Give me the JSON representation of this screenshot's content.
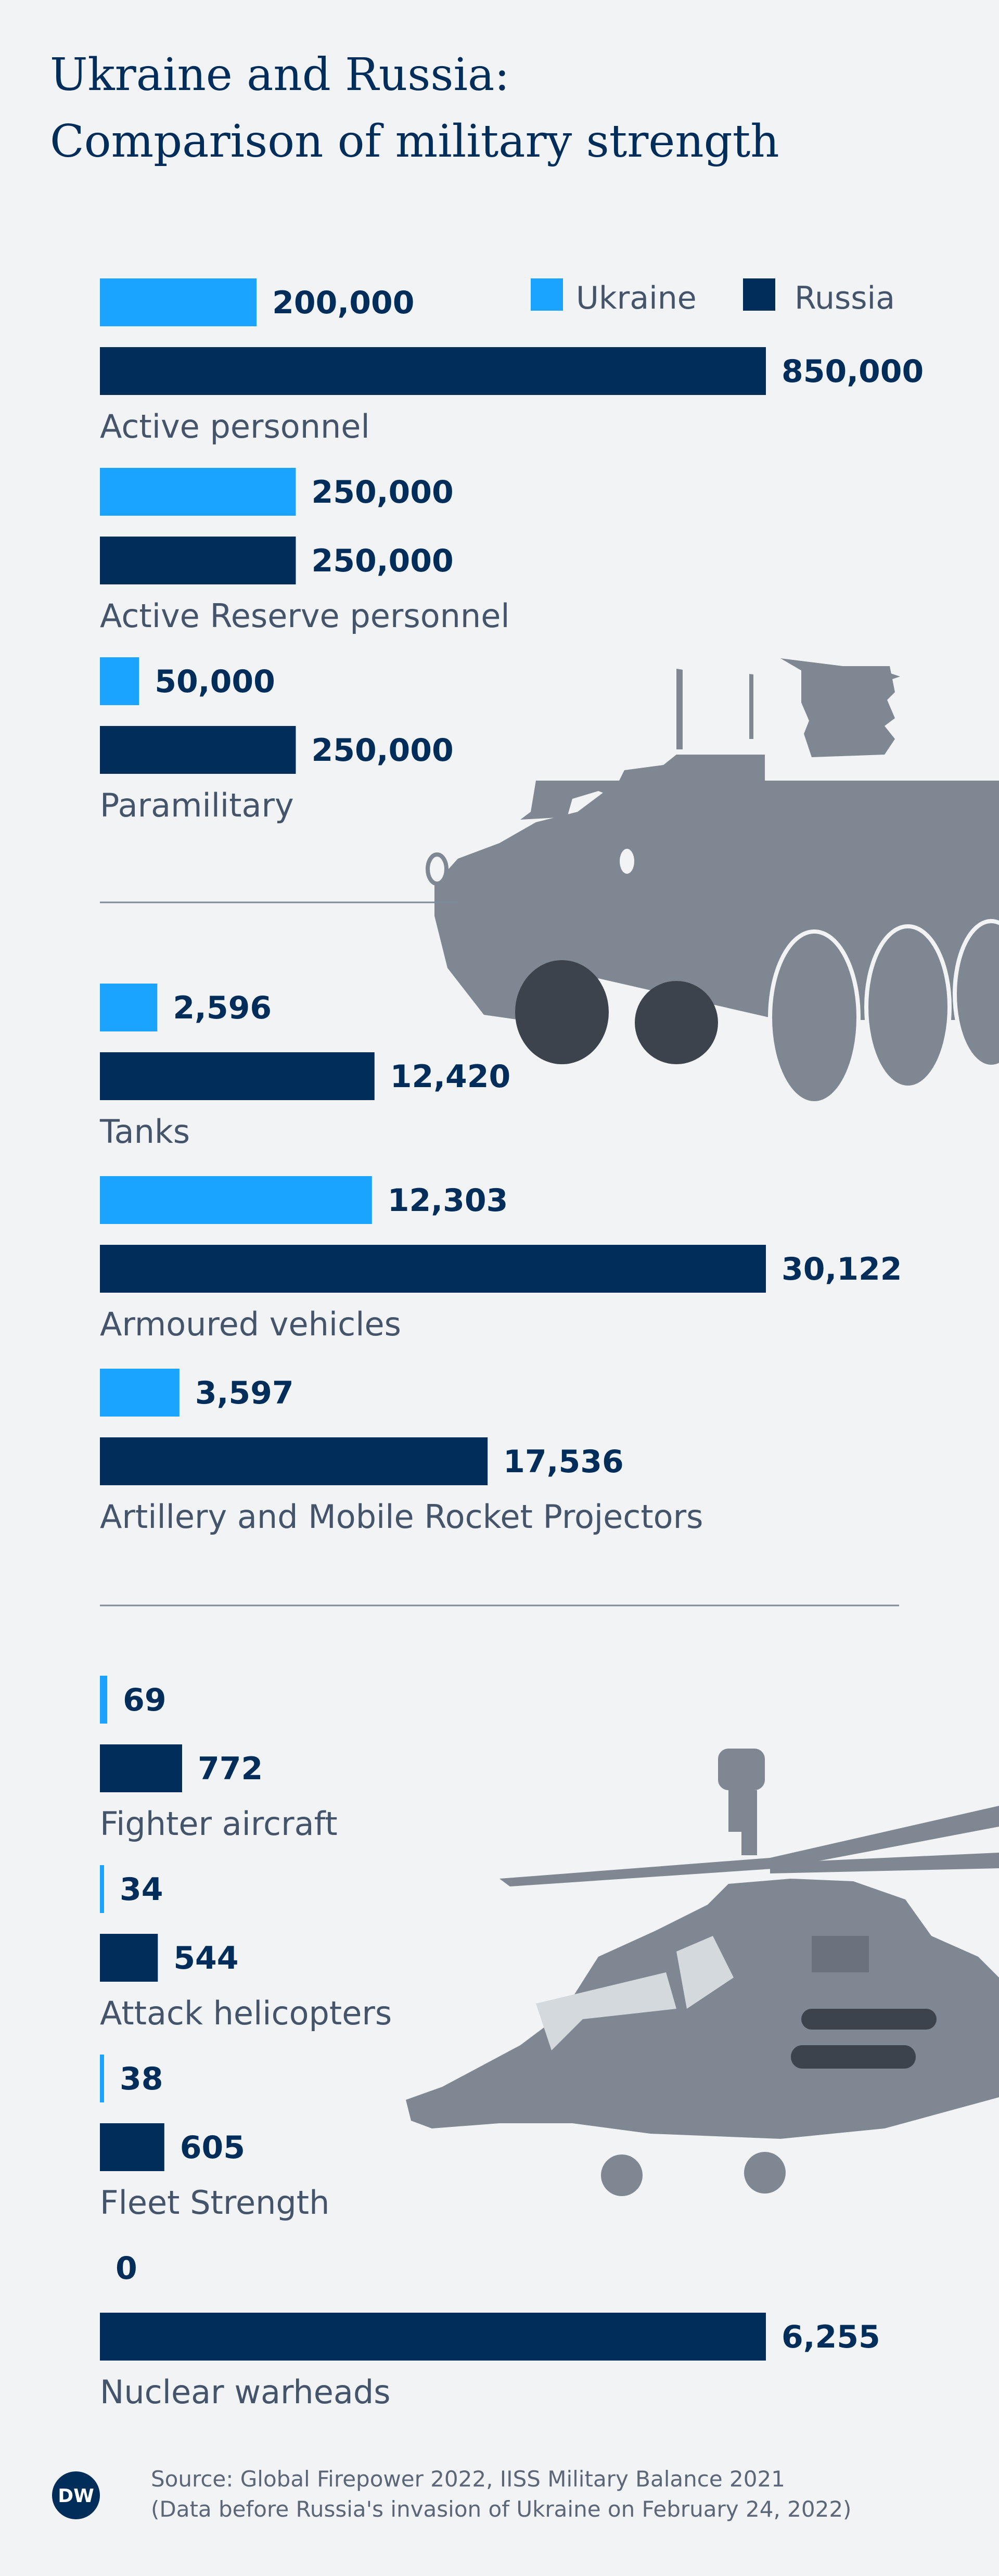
{
  "title_lines": [
    "Ukraine and Russia:",
    "Comparison of military strength"
  ],
  "colors": {
    "ukraine": "#1aa3ff",
    "russia": "#002d5a",
    "vehicle": "#7f8792",
    "vehicle_dark": "#3d434c"
  },
  "chart_data": {
    "type": "bar",
    "orientation": "horizontal",
    "title": "Ukraine and Russia: Comparison of military strength",
    "legend": {
      "position": "top-right",
      "entries": [
        "Ukraine",
        "Russia"
      ]
    },
    "groups": [
      {
        "name": "personnel",
        "max_value": 850000,
        "categories": [
          {
            "label": "Active personnel",
            "ukraine": 200000,
            "russia": 850000,
            "ukraine_text": "200,000",
            "russia_text": "850,000"
          },
          {
            "label": "Active Reserve personnel",
            "ukraine": 250000,
            "russia": 250000,
            "ukraine_text": "250,000",
            "russia_text": "250,000"
          },
          {
            "label": "Paramilitary",
            "ukraine": 50000,
            "russia": 250000,
            "ukraine_text": "50,000",
            "russia_text": "250,000"
          }
        ]
      },
      {
        "name": "land-equipment",
        "max_value": 30122,
        "categories": [
          {
            "label": "Tanks",
            "ukraine": 2596,
            "russia": 12420,
            "ukraine_text": "2,596",
            "russia_text": "12,420"
          },
          {
            "label": "Armoured vehicles",
            "ukraine": 12303,
            "russia": 30122,
            "ukraine_text": "12,303",
            "russia_text": "30,122"
          },
          {
            "label": "Artillery and Mobile Rocket Projectors",
            "ukraine": 3597,
            "russia": 17536,
            "ukraine_text": "3,597",
            "russia_text": "17,536"
          }
        ]
      },
      {
        "name": "air-sea-nuclear",
        "max_value": 6255,
        "categories": [
          {
            "label": "Fighter aircraft",
            "ukraine": 69,
            "russia": 772,
            "ukraine_text": "69",
            "russia_text": "772"
          },
          {
            "label": "Attack helicopters",
            "ukraine": 34,
            "russia": 544,
            "ukraine_text": "34",
            "russia_text": "544"
          },
          {
            "label": "Fleet Strength",
            "ukraine": 38,
            "russia": 605,
            "ukraine_text": "38",
            "russia_text": "605"
          },
          {
            "label": "Nuclear warheads",
            "ukraine": 0,
            "russia": 6255,
            "ukraine_text": "0",
            "russia_text": "6,255"
          }
        ]
      }
    ]
  },
  "source_lines": [
    "Source: Global Firepower 2022, IISS Military Balance 2021",
    "(Data before Russia's invasion of Ukraine on February 24, 2022)"
  ],
  "logo_text": "DW"
}
